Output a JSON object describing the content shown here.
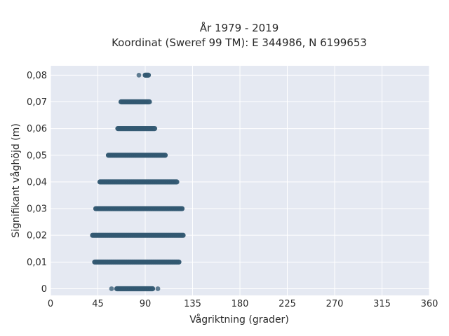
{
  "chart_data": {
    "type": "scatter",
    "title_lines": [
      "År 1979 - 2019",
      "Koordinat (Sweref 99 TM): E 344986, N 6199653"
    ],
    "xlabel": "Vågriktning (grader)",
    "ylabel": "Signifikant våghöjd (m)",
    "xlim": [
      0,
      360
    ],
    "ylim": [
      -0.0025,
      0.0835
    ],
    "x_ticks": [
      0,
      45,
      90,
      135,
      180,
      225,
      270,
      315,
      360
    ],
    "x_tick_labels": [
      "0",
      "45",
      "90",
      "135",
      "180",
      "225",
      "270",
      "315",
      "360"
    ],
    "y_ticks": [
      0,
      0.01,
      0.02,
      0.03,
      0.04,
      0.05,
      0.06,
      0.07,
      0.08
    ],
    "y_tick_labels": [
      "0",
      "0,01",
      "0,02",
      "0,03",
      "0,04",
      "0,05",
      "0,06",
      "0,07",
      "0,08"
    ],
    "grid": true,
    "legend": "none",
    "marker_color": "#2f5670",
    "bands": [
      {
        "y": 0.0,
        "x_range": [
          63,
          97
        ],
        "outliers": [
          58,
          102
        ]
      },
      {
        "y": 0.01,
        "x_range": [
          42,
          122
        ],
        "outliers": []
      },
      {
        "y": 0.02,
        "x_range": [
          40,
          126
        ],
        "outliers": []
      },
      {
        "y": 0.03,
        "x_range": [
          43,
          125
        ],
        "outliers": []
      },
      {
        "y": 0.04,
        "x_range": [
          47,
          120
        ],
        "outliers": []
      },
      {
        "y": 0.05,
        "x_range": [
          55,
          109
        ],
        "outliers": []
      },
      {
        "y": 0.06,
        "x_range": [
          64,
          99
        ],
        "outliers": []
      },
      {
        "y": 0.07,
        "x_range": [
          67,
          94
        ],
        "outliers": []
      },
      {
        "y": 0.08,
        "x_range": [
          90,
          93
        ],
        "outliers": [
          84
        ]
      }
    ]
  },
  "colors": {
    "plot_background": "#e5e9f2",
    "grid": "#ffffff",
    "marker": "#2f5670"
  }
}
